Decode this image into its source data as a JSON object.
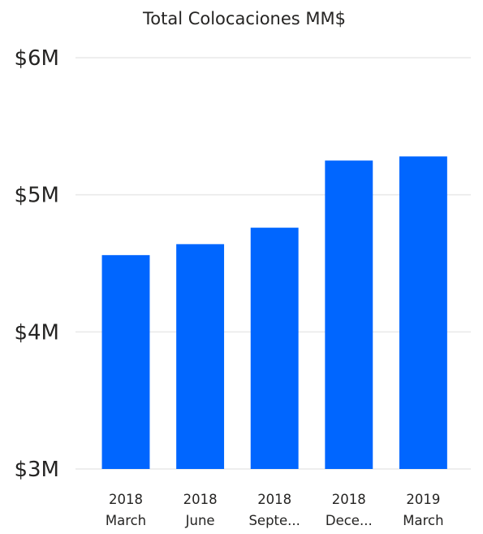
{
  "chart_data": {
    "type": "bar",
    "title": "Total Colocaciones MM$",
    "categories": [
      [
        "2018",
        "March"
      ],
      [
        "2018",
        "June"
      ],
      [
        "2018",
        "Septe..."
      ],
      [
        "2018",
        "Dece..."
      ],
      [
        "2019",
        "March"
      ]
    ],
    "values": [
      4.56,
      4.64,
      4.76,
      5.25,
      5.28
    ],
    "ylim": [
      3,
      6
    ],
    "yticks": [
      {
        "value": 3,
        "label": "$3M"
      },
      {
        "value": 4,
        "label": "$4M"
      },
      {
        "value": 5,
        "label": "$5M"
      },
      {
        "value": 6,
        "label": "$6M"
      }
    ],
    "grid": true,
    "bar_color": "#0066ff"
  }
}
